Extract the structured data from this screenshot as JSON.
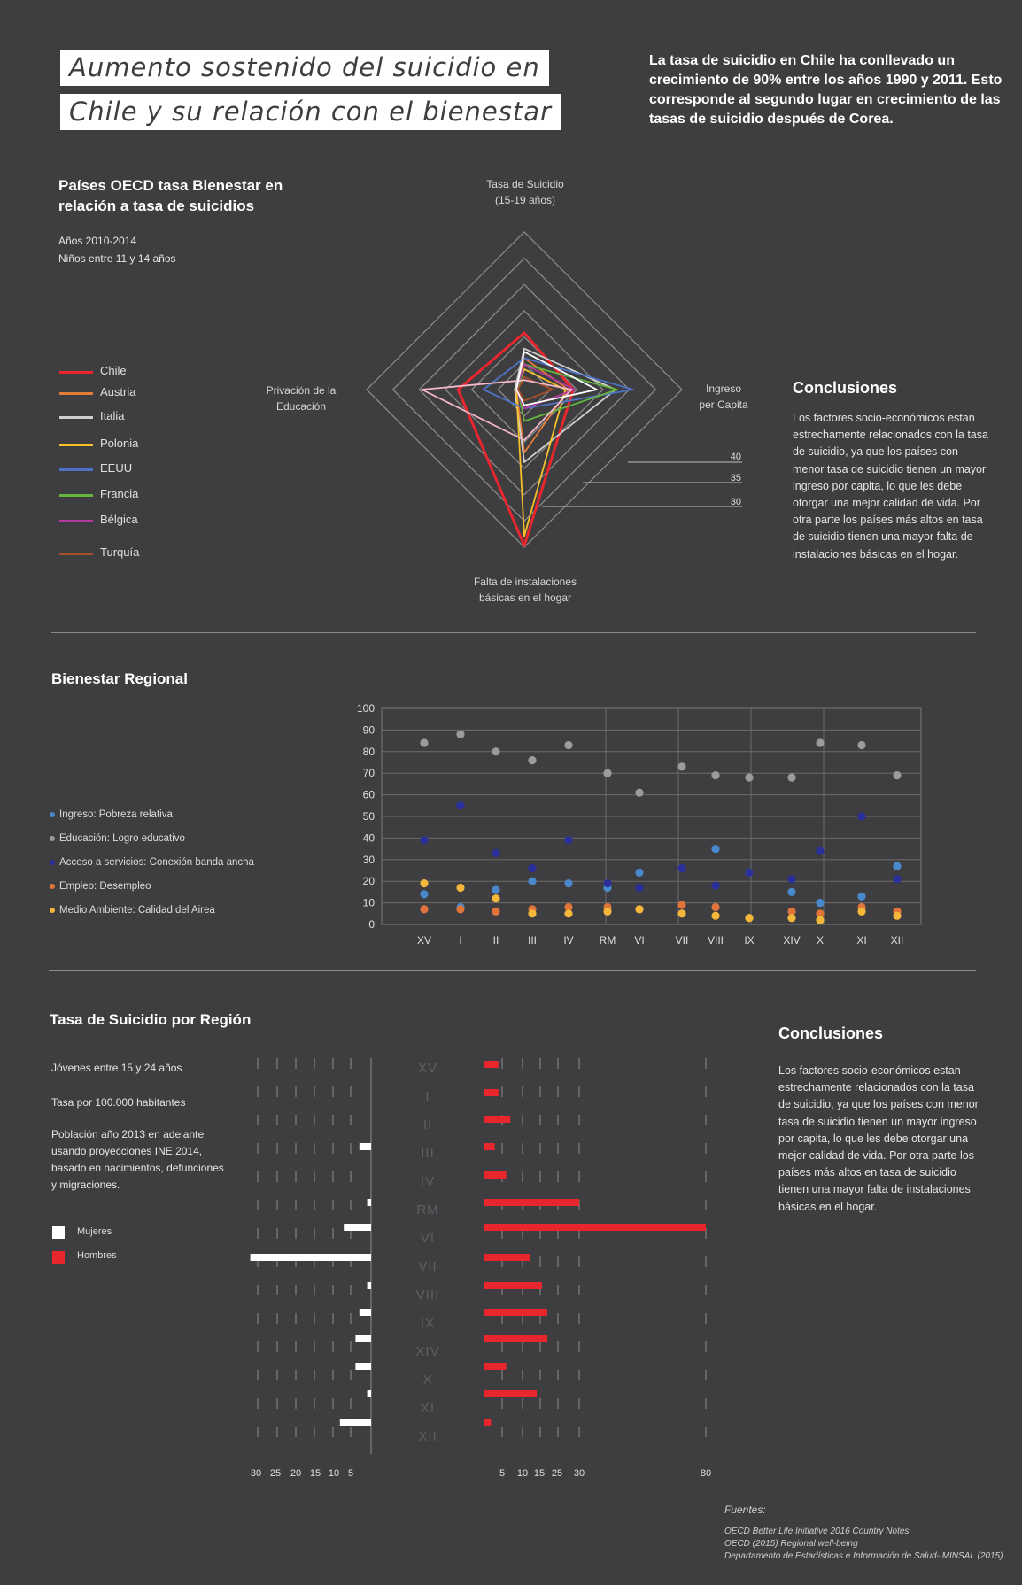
{
  "header": {
    "title_line1": "Aumento sostenido del suicidio en",
    "title_line2": "Chile y su relación con el bienestar",
    "intro": "La tasa de suicidio en Chile ha conllevado un crecimiento de 90% entre los años 1990 y 2011. Esto corresponde al segundo lugar en crecimiento de las tasas de suicidio después de Corea."
  },
  "radar": {
    "title": "Países OECD tasa Bienestar en relación a tasa de suicidios",
    "years": "Años 2010-2014",
    "kids": "Niños entre 11 y 14 años",
    "axes": [
      {
        "line1": "Tasa de Suicidio",
        "line2": "(15-19 años)"
      },
      {
        "line1": "Ingreso",
        "line2": "per Capita"
      },
      {
        "line1": "Falta de instalaciones",
        "line2": "básicas en el hogar"
      },
      {
        "line1": "Privación de la",
        "line2": "Educación"
      }
    ],
    "scale_labels": [
      "40",
      "35",
      "30"
    ],
    "series": [
      {
        "name": "Chile",
        "color": "#e8262e",
        "values": [
          0.36,
          0.31,
          0.99,
          0.42
        ]
      },
      {
        "name": "Austria",
        "color": "#e07b39",
        "values": [
          0.2,
          0.28,
          0.4,
          0.05
        ]
      },
      {
        "name": "Italia",
        "color": "#cfcfcf",
        "values": [
          0.26,
          0.58,
          0.46,
          0.06
        ]
      },
      {
        "name": "Polonia",
        "color": "#f5c02a",
        "values": [
          0.13,
          0.26,
          0.93,
          0.05
        ]
      },
      {
        "name": "EEUU",
        "color": "#4d72c4",
        "values": [
          0.2,
          0.69,
          0.12,
          0.26
        ]
      },
      {
        "name": "Francia",
        "color": "#63b540",
        "values": [
          0.16,
          0.59,
          0.2,
          0.04
        ]
      },
      {
        "name": "Bélgica",
        "color": "#b33a9f",
        "values": [
          0.16,
          0.32,
          0.12,
          0.05
        ]
      },
      {
        "name": "Turquía",
        "color": "#a54f2a",
        "values": [
          0.08,
          0.18,
          0.07,
          0.04
        ]
      },
      {
        "name": "",
        "color": "#f4b8c8",
        "values": [
          0.06,
          0.3,
          0.32,
          0.65
        ]
      },
      {
        "name": "",
        "color": "#ffffff",
        "values": [
          0.24,
          0.46,
          0.1,
          0.05
        ]
      }
    ],
    "conclusions_title": "Conclusiones",
    "conclusions_text": "Los factores socio-económicos estan estrechamente relacionados con la tasa de suicidio, ya que los países con menor tasa de suicidio tienen un mayor ingreso por capita, lo que les debe otorgar una mejor calidad de vida. Por otra parte los países más altos en tasa de suicidio tienen una mayor falta de instalaciones básicas en el hogar."
  },
  "chart_data": [
    {
      "type": "scatter",
      "title": "Bienestar Regional",
      "categories": [
        "XV",
        "I",
        "II",
        "III",
        "IV",
        "RM",
        "VI",
        "VII",
        "VIII",
        "IX",
        "XIV",
        "X",
        "XI",
        "XII"
      ],
      "ylim": [
        0,
        100
      ],
      "yticks": [
        0,
        10,
        20,
        30,
        40,
        50,
        60,
        70,
        80,
        90,
        100
      ],
      "series": [
        {
          "name": "Ingreso: Pobreza relativa",
          "color": "#4a88cc",
          "values": [
            14,
            8,
            16,
            20,
            19,
            17,
            24,
            26,
            35,
            24,
            15,
            10,
            13,
            27
          ]
        },
        {
          "name": "Educación: Logro educativo",
          "color": "#9b9b9b",
          "values": [
            84,
            88,
            80,
            76,
            83,
            70,
            61,
            73,
            69,
            68,
            68,
            84,
            83,
            69
          ]
        },
        {
          "name": "Acceso a servicios: Conexión banda ancha",
          "color": "#2a2f9c",
          "values": [
            39,
            55,
            33,
            26,
            39,
            19,
            17,
            26,
            18,
            24,
            21,
            34,
            50,
            21
          ]
        },
        {
          "name": "Empleo: Desempleo",
          "color": "#e0743a",
          "values": [
            7,
            7,
            6,
            7,
            8,
            8,
            7,
            9,
            8,
            3,
            6,
            5,
            8,
            6
          ]
        },
        {
          "name": "Medio Ambiente: Calidad del Airea",
          "color": "#f4b73a",
          "values": [
            19,
            17,
            12,
            5,
            5,
            6,
            7,
            5,
            4,
            3,
            3,
            2,
            6,
            4
          ]
        }
      ]
    },
    {
      "type": "bar",
      "title": "Tasa de Suicidio por Región",
      "categories": [
        "XV",
        "I",
        "II",
        "III",
        "IV",
        "RM",
        "VI",
        "VII",
        "VIII",
        "IX",
        "XIV",
        "X",
        "XI",
        "XII"
      ],
      "series": [
        {
          "name": "Mujeres",
          "color": "#ffffff",
          "values": [
            0,
            0,
            3,
            0,
            1,
            7,
            31,
            1,
            3,
            4,
            4,
            1,
            8,
            0
          ]
        },
        {
          "name": "Hombres",
          "color": "#e8262e",
          "values": [
            4,
            4,
            7,
            3,
            6,
            30,
            80,
            12,
            16,
            19,
            19,
            6,
            14,
            2
          ]
        }
      ],
      "left_ticks": [
        "30",
        "25",
        "20",
        "15",
        "10",
        "5"
      ],
      "right_ticks": [
        "5",
        "10",
        "15",
        "25",
        "30",
        "80"
      ]
    }
  ],
  "scatter_section": {
    "title": "Bienestar Regional"
  },
  "bars_section": {
    "title": "Tasa de Suicidio por Región",
    "note1": "Jóvenes entre 15 y 24 años",
    "note2": "Tasa por 100.000 habitantes",
    "note3": "Población año 2013 en adelante usando proyecciones INE 2014, basado en nacimientos, defunciones y migraciones.",
    "legend_women": "Mujeres",
    "legend_men": "Hombres",
    "conclusions_title": "Conclusiones",
    "conclusions_text": "Los factores socio-económicos estan estrechamente relacionados con la tasa de suicidio, ya que los países con menor tasa de suicidio tienen un mayor ingreso por capita, lo que les debe otorgar una mejor calidad de vida. Por otra parte los países más altos en tasa de suicidio tienen una mayor falta de instalaciones básicas en el hogar."
  },
  "sources": {
    "title": "Fuentes:",
    "lines": [
      "OECD Better Life Initiative 2016 Country Notes",
      "OECD (2015) Regional well-being",
      "Departamento de Estadísticas e Información de Salud- MINSAL (2015)"
    ]
  }
}
